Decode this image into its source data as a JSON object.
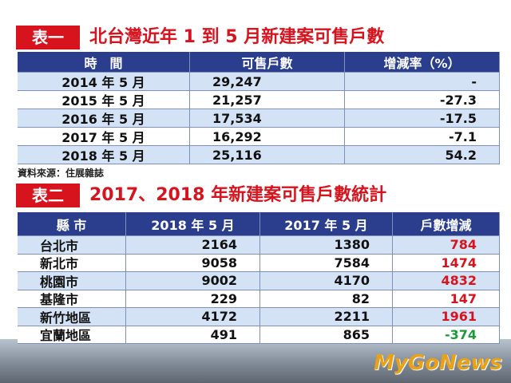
{
  "table1": {
    "label": "表一",
    "title": "北台灣近年 1 到 5 月新建案可售戶數",
    "header": [
      "時　間",
      "可售戶數",
      "增減率（%）"
    ],
    "rows": [
      [
        "2014 年 5 月",
        "29,247",
        "-"
      ],
      [
        "2015 年 5 月",
        "21,257",
        "-27.3"
      ],
      [
        "2016 年 5 月",
        "17,534",
        "-17.5"
      ],
      [
        "2017 年 5 月",
        "16,292",
        "-7.1"
      ],
      [
        "2018 年 5 月",
        "25,116",
        "54.2"
      ]
    ]
  },
  "source": "資料來源：住展雜誌",
  "table2": {
    "label": "表二",
    "title": "2017、2018 年新建案可售戶數統計",
    "header": [
      "縣 市",
      "2018 年 5 月",
      "2017 年 5 月",
      "戶數增減"
    ],
    "rows": [
      [
        "台北市",
        "2164",
        "1380",
        "784"
      ],
      [
        "新北市",
        "9058",
        "7584",
        "1474"
      ],
      [
        "桃園市",
        "9002",
        "4170",
        "4832"
      ],
      [
        "基隆市",
        "229",
        "82",
        "147"
      ],
      [
        "新竹地區",
        "4172",
        "2211",
        "1961"
      ],
      [
        "宜蘭地區",
        "491",
        "865",
        "-374"
      ]
    ]
  },
  "watermark": "MyGoNews"
}
